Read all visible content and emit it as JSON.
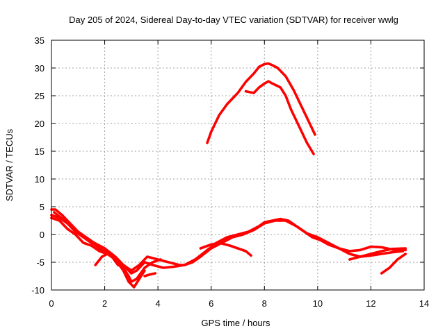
{
  "chart_data": {
    "type": "line",
    "title": "Day 205 of 2024, Sidereal Day-to-day VTEC variation (SDTVAR) for receiver wwlg",
    "xlabel": "GPS time / hours",
    "ylabel": "SDTVAR / TECUs",
    "xlim": [
      0,
      14
    ],
    "ylim": [
      -10,
      35
    ],
    "xticks": [
      "0",
      "2",
      "4",
      "6",
      "8",
      "10",
      "12",
      "14"
    ],
    "yticks": [
      "-10",
      "-5",
      "0",
      "5",
      "10",
      "15",
      "20",
      "25",
      "30",
      "35"
    ],
    "grid": true,
    "color": "#ff0000",
    "series": [
      {
        "name": "upper-arc-a",
        "x": [
          5.85,
          6.0,
          6.3,
          6.6,
          7.0,
          7.3,
          7.6,
          7.8,
          8.0,
          8.15,
          8.3,
          8.5,
          8.8,
          9.1,
          9.4,
          9.7,
          9.9
        ],
        "y": [
          16.5,
          18.5,
          21.5,
          23.5,
          25.5,
          27.5,
          29.0,
          30.2,
          30.7,
          30.8,
          30.5,
          30.0,
          28.5,
          26.0,
          23.0,
          20.0,
          18.0
        ]
      },
      {
        "name": "upper-arc-b",
        "x": [
          7.3,
          7.6,
          7.8,
          8.0,
          8.15,
          8.3,
          8.6,
          8.8,
          9.0,
          9.3,
          9.6,
          9.85
        ],
        "y": [
          25.8,
          25.5,
          26.5,
          27.2,
          27.6,
          27.2,
          26.5,
          25.0,
          22.5,
          19.5,
          16.5,
          14.5
        ]
      },
      {
        "name": "lower-a",
        "x": [
          0.0,
          0.15,
          0.4,
          0.7,
          1.0,
          1.3,
          1.6,
          2.0,
          2.4,
          2.7,
          3.0,
          3.3,
          3.6,
          4.0,
          4.4,
          4.8,
          5.0,
          5.4,
          5.8,
          6.2,
          6.6,
          7.0,
          7.4,
          7.8,
          8.0,
          8.3,
          8.6,
          8.9,
          9.2,
          9.5,
          9.8,
          10.1,
          10.4,
          10.8,
          11.2,
          11.6,
          12.0,
          12.4,
          12.8,
          13.3
        ],
        "y": [
          4.5,
          4.5,
          3.5,
          2.0,
          0.5,
          -0.5,
          -1.5,
          -2.5,
          -4.0,
          -5.5,
          -6.5,
          -5.5,
          -4.0,
          -4.5,
          -5.0,
          -5.5,
          -5.5,
          -4.5,
          -3.0,
          -1.5,
          -0.5,
          0.0,
          0.5,
          1.5,
          2.2,
          2.5,
          2.8,
          2.5,
          1.5,
          0.5,
          -0.5,
          -1.0,
          -1.8,
          -2.5,
          -3.0,
          -2.8,
          -2.2,
          -2.3,
          -2.7,
          -2.8
        ]
      },
      {
        "name": "lower-b",
        "x": [
          0.0,
          0.3,
          0.6,
          1.0,
          1.4,
          1.8,
          2.2,
          2.5,
          2.8,
          3.0,
          3.2,
          3.5,
          3.8,
          4.2,
          4.6,
          5.0,
          5.3,
          5.6,
          6.0,
          6.4,
          6.8,
          7.2,
          7.6,
          8.0,
          8.4,
          8.8,
          9.2,
          9.6,
          10.0,
          10.4,
          10.8,
          11.2,
          11.6,
          12.0,
          12.4,
          12.8,
          13.3
        ],
        "y": [
          3.5,
          3.0,
          2.0,
          0.5,
          -1.0,
          -2.5,
          -3.5,
          -5.5,
          -6.0,
          -7.0,
          -6.5,
          -5.0,
          -5.5,
          -6.0,
          -5.8,
          -5.5,
          -5.0,
          -4.0,
          -2.5,
          -1.5,
          -0.5,
          0.0,
          0.8,
          2.0,
          2.5,
          2.5,
          1.5,
          0.2,
          -0.5,
          -1.5,
          -2.5,
          -3.5,
          -4.0,
          -3.5,
          -3.0,
          -2.6,
          -2.5
        ]
      },
      {
        "name": "lower-c",
        "x": [
          0.0,
          0.3,
          0.6,
          0.9,
          1.2,
          1.5,
          1.8,
          2.1,
          2.4,
          2.7,
          2.9,
          3.1,
          3.3,
          3.5
        ],
        "y": [
          3.0,
          2.5,
          1.0,
          0.0,
          -1.5,
          -2.0,
          -3.0,
          -3.5,
          -4.5,
          -6.5,
          -8.5,
          -9.5,
          -8.0,
          -6.5
        ]
      },
      {
        "name": "lower-d",
        "x": [
          0.1,
          0.5,
          0.9,
          1.2,
          1.5,
          1.7
        ],
        "y": [
          4.0,
          2.5,
          0.5,
          -0.5,
          -1.5,
          -2.0
        ]
      },
      {
        "name": "lower-e",
        "x": [
          1.65,
          1.9,
          2.1,
          2.3,
          2.5,
          2.7,
          2.9,
          3.0,
          3.2,
          3.5,
          3.8,
          4.1
        ],
        "y": [
          -5.5,
          -4.0,
          -3.5,
          -4.0,
          -5.0,
          -6.0,
          -7.5,
          -8.5,
          -8.0,
          -6.0,
          -5.0,
          -4.5
        ]
      },
      {
        "name": "lower-f",
        "x": [
          3.5,
          3.7,
          3.9
        ],
        "y": [
          -7.5,
          -7.2,
          -7.0
        ]
      },
      {
        "name": "lower-g",
        "x": [
          5.6,
          6.0,
          6.3,
          6.7,
          7.0,
          7.3,
          7.5
        ],
        "y": [
          -2.5,
          -1.8,
          -1.5,
          -2.0,
          -2.5,
          -3.0,
          -3.8
        ]
      },
      {
        "name": "lower-h",
        "x": [
          11.2,
          11.6,
          12.0,
          12.4,
          12.8,
          13.2
        ],
        "y": [
          -4.5,
          -4.0,
          -3.8,
          -3.5,
          -3.2,
          -3.0
        ]
      },
      {
        "name": "lower-i",
        "x": [
          12.4,
          12.7,
          13.0,
          13.3
        ],
        "y": [
          -7.0,
          -6.0,
          -4.5,
          -3.5
        ]
      }
    ]
  }
}
